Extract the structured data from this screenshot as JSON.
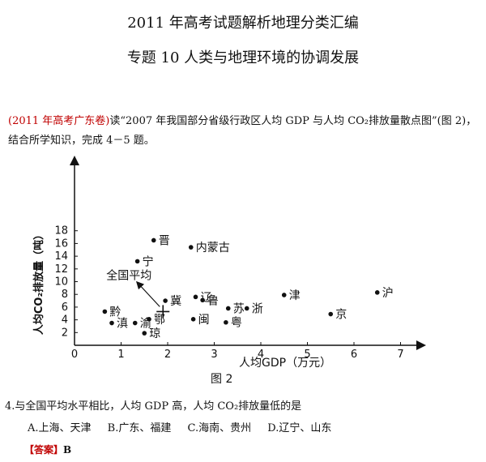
{
  "doc": {
    "title": "2011 年高考试题解析地理分类汇编",
    "subtitle": "专题 10   人类与地理环境的协调发展",
    "source_tag": "(2011 年高考广东卷)",
    "intro_text": "读“2007 年我国部分省级行政区人均 GDP 与人均 CO₂排放量散点图”(图 2)，",
    "intro_line2": "结合所学知识，完成 4－5 题。",
    "question": "4.与全国平均水平相比，人均 GDP 高，人均 CO₂排放量低的是",
    "options": [
      "A.上海、天津",
      "B.广东、福建",
      "C.海南、贵州",
      "D.辽宁、山东"
    ],
    "answer_label": "【答案】",
    "answer_value": "B"
  },
  "chart_data": {
    "type": "scatter",
    "title": "",
    "caption": "图 2",
    "xlabel": "人均GDP（万元）",
    "ylabel": "人均CO₂排放量（吨）",
    "xlim": [
      0,
      7.5
    ],
    "ylim": [
      0,
      19
    ],
    "x_ticks": [
      0,
      1,
      2,
      3,
      4,
      5,
      6,
      7
    ],
    "y_ticks": [
      2,
      4,
      6,
      8,
      10,
      12,
      14,
      16,
      18
    ],
    "points": [
      {
        "label": "晋",
        "x": 1.7,
        "y": 16.5
      },
      {
        "label": "内蒙古",
        "x": 2.5,
        "y": 15.4
      },
      {
        "label": "宁",
        "x": 1.35,
        "y": 13.2
      },
      {
        "label": "辽",
        "x": 2.6,
        "y": 7.6
      },
      {
        "label": "鲁",
        "x": 2.75,
        "y": 7.1
      },
      {
        "label": "冀",
        "x": 1.95,
        "y": 7.0
      },
      {
        "label": "津",
        "x": 4.5,
        "y": 7.9
      },
      {
        "label": "沪",
        "x": 6.5,
        "y": 8.3
      },
      {
        "label": "苏",
        "x": 3.3,
        "y": 5.8
      },
      {
        "label": "浙",
        "x": 3.7,
        "y": 5.8
      },
      {
        "label": "京",
        "x": 5.5,
        "y": 4.9
      },
      {
        "label": "黔",
        "x": 0.65,
        "y": 5.3
      },
      {
        "label": "滇",
        "x": 0.8,
        "y": 3.5
      },
      {
        "label": "渝",
        "x": 1.3,
        "y": 3.5
      },
      {
        "label": "鄂",
        "x": 1.6,
        "y": 4.1
      },
      {
        "label": "琼",
        "x": 1.5,
        "y": 1.9
      },
      {
        "label": "闽",
        "x": 2.55,
        "y": 4.1
      },
      {
        "label": "粤",
        "x": 3.25,
        "y": 3.6
      }
    ],
    "average": {
      "label": "全国平均",
      "x": 1.9,
      "y": 5.3
    },
    "colors": {
      "ink": "#111111",
      "red": "#c00000"
    }
  }
}
